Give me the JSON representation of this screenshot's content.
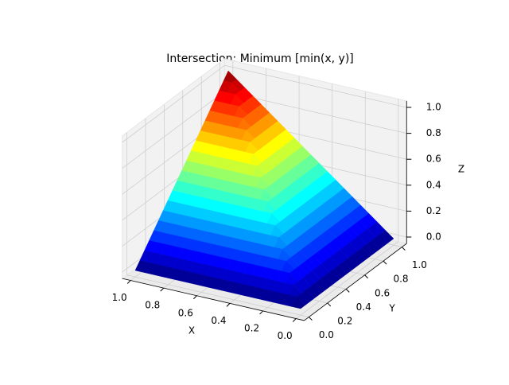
{
  "chart_data": {
    "type": "surface",
    "title": "Intersection: Minimum [min(x, y)]",
    "xlabel": "X",
    "ylabel": "Y",
    "zlabel": "Z",
    "cmap": "jet",
    "grid": true,
    "xlim": [
      0,
      1
    ],
    "ylim": [
      0,
      1
    ],
    "zlim": [
      0,
      1
    ],
    "xticks": [
      {
        "value": 0,
        "label": "0.0"
      },
      0.2,
      0.4,
      0.6,
      0.8,
      {
        "value": 1,
        "label": "1.0"
      }
    ],
    "yticks": [
      {
        "value": 0,
        "label": "0.0"
      },
      0.2,
      0.4,
      0.6,
      0.8,
      {
        "value": 1,
        "label": "1.0"
      }
    ],
    "zticks": [
      {
        "value": 0,
        "label": "0.0"
      },
      0.2,
      0.4,
      0.6,
      0.8,
      {
        "value": 1,
        "label": "1.0"
      }
    ],
    "x": [
      0,
      0.05,
      0.1,
      0.15,
      0.2,
      0.25,
      0.3,
      0.35,
      0.4,
      0.45,
      0.5,
      0.55,
      0.6,
      0.65,
      0.7,
      0.75,
      0.8,
      0.85,
      0.9,
      0.95,
      1
    ],
    "y": [
      0,
      0.05,
      0.1,
      0.15,
      0.2,
      0.25,
      0.3,
      0.35,
      0.4,
      0.45,
      0.5,
      0.55,
      0.6,
      0.65,
      0.7,
      0.75,
      0.8,
      0.85,
      0.9,
      0.95,
      1
    ],
    "z": [
      [
        0,
        0,
        0,
        0,
        0,
        0,
        0,
        0,
        0,
        0,
        0,
        0,
        0,
        0,
        0,
        0,
        0,
        0,
        0,
        0,
        0
      ],
      [
        0,
        0.05,
        0.05,
        0.05,
        0.05,
        0.05,
        0.05,
        0.05,
        0.05,
        0.05,
        0.05,
        0.05,
        0.05,
        0.05,
        0.05,
        0.05,
        0.05,
        0.05,
        0.05,
        0.05,
        0.05
      ],
      [
        0,
        0.05,
        0.1,
        0.1,
        0.1,
        0.1,
        0.1,
        0.1,
        0.1,
        0.1,
        0.1,
        0.1,
        0.1,
        0.1,
        0.1,
        0.1,
        0.1,
        0.1,
        0.1,
        0.1,
        0.1
      ],
      [
        0,
        0.05,
        0.1,
        0.15,
        0.15,
        0.15,
        0.15,
        0.15,
        0.15,
        0.15,
        0.15,
        0.15,
        0.15,
        0.15,
        0.15,
        0.15,
        0.15,
        0.15,
        0.15,
        0.15,
        0.15
      ],
      [
        0,
        0.05,
        0.1,
        0.15,
        0.2,
        0.2,
        0.2,
        0.2,
        0.2,
        0.2,
        0.2,
        0.2,
        0.2,
        0.2,
        0.2,
        0.2,
        0.2,
        0.2,
        0.2,
        0.2,
        0.2
      ],
      [
        0,
        0.05,
        0.1,
        0.15,
        0.2,
        0.25,
        0.25,
        0.25,
        0.25,
        0.25,
        0.25,
        0.25,
        0.25,
        0.25,
        0.25,
        0.25,
        0.25,
        0.25,
        0.25,
        0.25,
        0.25
      ],
      [
        0,
        0.05,
        0.1,
        0.15,
        0.2,
        0.25,
        0.3,
        0.3,
        0.3,
        0.3,
        0.3,
        0.3,
        0.3,
        0.3,
        0.3,
        0.3,
        0.3,
        0.3,
        0.3,
        0.3,
        0.3
      ],
      [
        0,
        0.05,
        0.1,
        0.15,
        0.2,
        0.25,
        0.3,
        0.35,
        0.35,
        0.35,
        0.35,
        0.35,
        0.35,
        0.35,
        0.35,
        0.35,
        0.35,
        0.35,
        0.35,
        0.35,
        0.35
      ],
      [
        0,
        0.05,
        0.1,
        0.15,
        0.2,
        0.25,
        0.3,
        0.35,
        0.4,
        0.4,
        0.4,
        0.4,
        0.4,
        0.4,
        0.4,
        0.4,
        0.4,
        0.4,
        0.4,
        0.4,
        0.4
      ],
      [
        0,
        0.05,
        0.1,
        0.15,
        0.2,
        0.25,
        0.3,
        0.35,
        0.4,
        0.45,
        0.45,
        0.45,
        0.45,
        0.45,
        0.45,
        0.45,
        0.45,
        0.45,
        0.45,
        0.45,
        0.45
      ],
      [
        0,
        0.05,
        0.1,
        0.15,
        0.2,
        0.25,
        0.3,
        0.35,
        0.4,
        0.45,
        0.5,
        0.5,
        0.5,
        0.5,
        0.5,
        0.5,
        0.5,
        0.5,
        0.5,
        0.5,
        0.5
      ],
      [
        0,
        0.05,
        0.1,
        0.15,
        0.2,
        0.25,
        0.3,
        0.35,
        0.4,
        0.45,
        0.5,
        0.55,
        0.55,
        0.55,
        0.55,
        0.55,
        0.55,
        0.55,
        0.55,
        0.55,
        0.55
      ],
      [
        0,
        0.05,
        0.1,
        0.15,
        0.2,
        0.25,
        0.3,
        0.35,
        0.4,
        0.45,
        0.5,
        0.55,
        0.6,
        0.6,
        0.6,
        0.6,
        0.6,
        0.6,
        0.6,
        0.6,
        0.6
      ],
      [
        0,
        0.05,
        0.1,
        0.15,
        0.2,
        0.25,
        0.3,
        0.35,
        0.4,
        0.45,
        0.5,
        0.55,
        0.6,
        0.65,
        0.65,
        0.65,
        0.65,
        0.65,
        0.65,
        0.65,
        0.65
      ],
      [
        0,
        0.05,
        0.1,
        0.15,
        0.2,
        0.25,
        0.3,
        0.35,
        0.4,
        0.45,
        0.5,
        0.55,
        0.6,
        0.65,
        0.7,
        0.7,
        0.7,
        0.7,
        0.7,
        0.7,
        0.7
      ],
      [
        0,
        0.05,
        0.1,
        0.15,
        0.2,
        0.25,
        0.3,
        0.35,
        0.4,
        0.45,
        0.5,
        0.55,
        0.6,
        0.65,
        0.7,
        0.75,
        0.75,
        0.75,
        0.75,
        0.75,
        0.75
      ],
      [
        0,
        0.05,
        0.1,
        0.15,
        0.2,
        0.25,
        0.3,
        0.35,
        0.4,
        0.45,
        0.5,
        0.55,
        0.6,
        0.65,
        0.7,
        0.75,
        0.8,
        0.8,
        0.8,
        0.8,
        0.8
      ],
      [
        0,
        0.05,
        0.1,
        0.15,
        0.2,
        0.25,
        0.3,
        0.35,
        0.4,
        0.45,
        0.5,
        0.55,
        0.6,
        0.65,
        0.7,
        0.75,
        0.8,
        0.85,
        0.85,
        0.85,
        0.85
      ],
      [
        0,
        0.05,
        0.1,
        0.15,
        0.2,
        0.25,
        0.3,
        0.35,
        0.4,
        0.45,
        0.5,
        0.55,
        0.6,
        0.65,
        0.7,
        0.75,
        0.8,
        0.85,
        0.9,
        0.9,
        0.9
      ],
      [
        0,
        0.05,
        0.1,
        0.15,
        0.2,
        0.25,
        0.3,
        0.35,
        0.4,
        0.45,
        0.5,
        0.55,
        0.6,
        0.65,
        0.7,
        0.75,
        0.8,
        0.85,
        0.9,
        0.95,
        0.95
      ],
      [
        0,
        0.05,
        0.1,
        0.15,
        0.2,
        0.25,
        0.3,
        0.35,
        0.4,
        0.45,
        0.5,
        0.55,
        0.6,
        0.65,
        0.7,
        0.75,
        0.8,
        0.85,
        0.9,
        0.95,
        1
      ]
    ]
  }
}
